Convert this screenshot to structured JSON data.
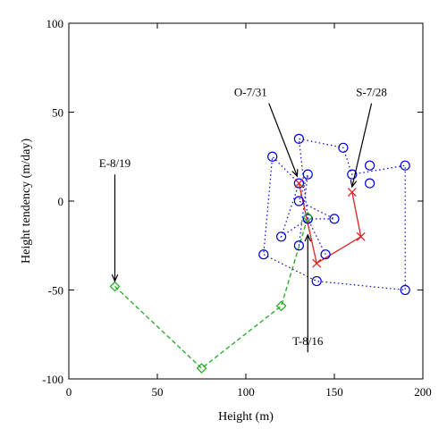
{
  "chart_data": {
    "type": "scatter",
    "xlabel": "Height (m)",
    "ylabel": "Height tendency (m/day)",
    "xlim": [
      0,
      200
    ],
    "ylim": [
      -100,
      100
    ],
    "xticks": [
      0,
      50,
      100,
      150,
      200
    ],
    "yticks": [
      -100,
      -50,
      0,
      50,
      100
    ],
    "grid": false,
    "series": [
      {
        "key": "blue",
        "color": "#0000dd",
        "line_style": "dotted",
        "marker": "circle",
        "x": [
          130,
          135,
          130,
          150,
          135,
          120,
          130,
          115,
          110,
          140,
          190,
          190,
          160,
          155,
          130,
          135,
          145
        ],
        "y": [
          -25,
          15,
          0,
          -10,
          -10,
          -20,
          10,
          25,
          -30,
          -45,
          -50,
          20,
          15,
          30,
          35,
          -10,
          -30
        ]
      },
      {
        "key": "red",
        "color": "#dd2222",
        "line_style": "solid",
        "marker": "x",
        "x": [
          130,
          140,
          165,
          160
        ],
        "y": [
          10,
          -35,
          -20,
          5
        ]
      },
      {
        "key": "green",
        "color": "#22aa22",
        "line_style": "dashed",
        "marker": "diamond",
        "x": [
          26,
          75,
          120,
          135
        ],
        "y": [
          -48,
          -94,
          -59,
          -9
        ]
      }
    ],
    "extra_blue_markers": {
      "x": [
        170,
        170
      ],
      "y": [
        20,
        10
      ]
    },
    "annotations": [
      {
        "text": "O-7/31",
        "text_x": 112,
        "text_y": 59,
        "arrow_x": 129,
        "arrow_y": 14,
        "anchor": "end"
      },
      {
        "text": "S-7/28",
        "text_x": 171,
        "text_y": 59,
        "arrow_x": 160,
        "arrow_y": 8,
        "anchor": "middle"
      },
      {
        "text": "E-8/19",
        "text_x": 26,
        "text_y": 19,
        "arrow_x": 26,
        "arrow_y": -45,
        "anchor": "middle"
      },
      {
        "text": "T-8/16",
        "text_x": 135,
        "text_y": -81,
        "arrow_x": 135,
        "arrow_y": -19,
        "anchor": "middle"
      }
    ]
  }
}
